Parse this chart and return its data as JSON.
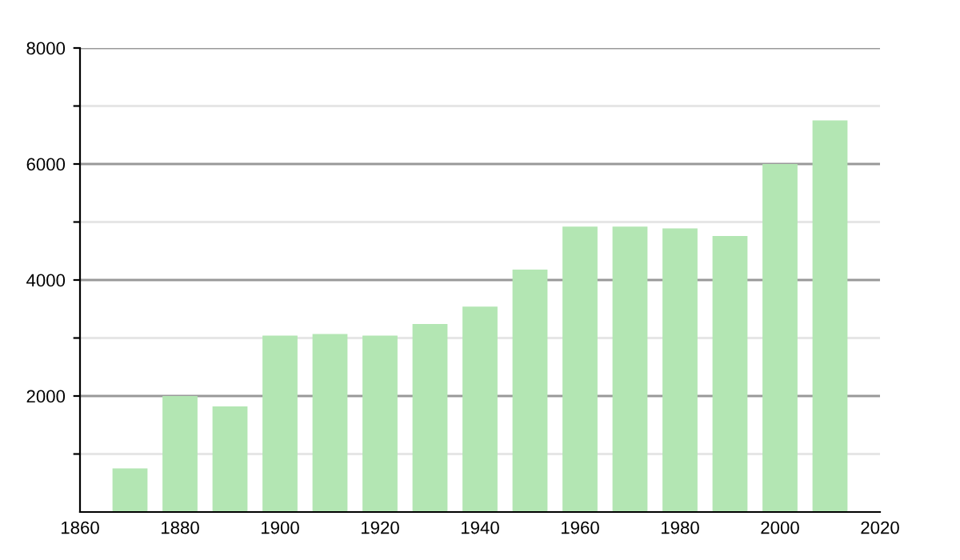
{
  "chart_data": {
    "type": "bar",
    "x": [
      1870,
      1880,
      1890,
      1900,
      1910,
      1920,
      1930,
      1940,
      1950,
      1960,
      1970,
      1980,
      1990,
      2000,
      2010
    ],
    "values": [
      750,
      2000,
      1820,
      3040,
      3070,
      3040,
      3240,
      3540,
      4180,
      4920,
      4920,
      4890,
      4760,
      6000,
      6750
    ],
    "color": "#b3e6b3",
    "xlim": [
      1860,
      2020
    ],
    "xticks": [
      1860,
      1880,
      1900,
      1920,
      1940,
      1960,
      1980,
      2000,
      2020
    ],
    "ylim": [
      0,
      8000
    ],
    "yticks": [
      {
        "value": 1000,
        "label": null
      },
      2000,
      {
        "value": 3000,
        "label": null
      },
      4000,
      {
        "value": 5000,
        "label": null
      },
      6000,
      {
        "value": 7000,
        "label": null
      },
      8000
    ],
    "grid": "y"
  }
}
